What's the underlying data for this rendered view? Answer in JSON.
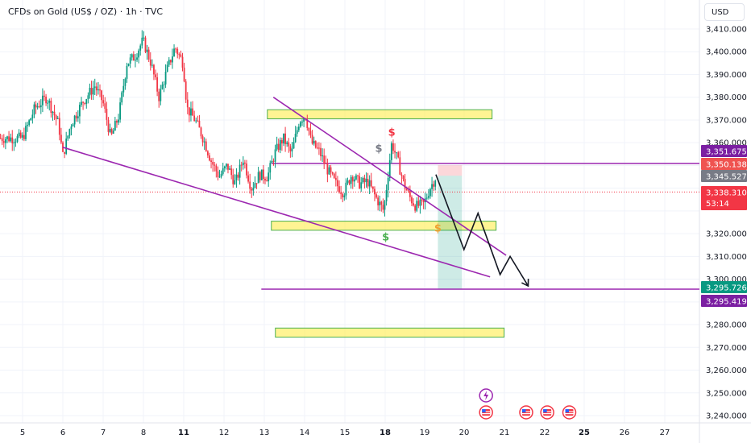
{
  "header": {
    "title": "CFDs on Gold (US$ / OZ) · 1h · TVC",
    "currency": "USD"
  },
  "chart_data": {
    "type": "candlestick",
    "title": "CFDs on Gold (US$ / OZ) · 1h · TVC",
    "ylim": [
      3236,
      3416
    ],
    "y_ticks": [
      3410,
      3400,
      3390,
      3380,
      3370,
      3360,
      3320,
      3310,
      3300,
      3280,
      3270,
      3260,
      3250,
      3240
    ],
    "y_tick_labels": [
      "3,410.000",
      "3,400.000",
      "3,390.000",
      "3,380.000",
      "3,370.000",
      "3,360.000",
      "3,320.000",
      "3,310.000",
      "3,300.000",
      "3,280.000",
      "3,270.000",
      "3,260.000",
      "3,250.000",
      "3,240.000"
    ],
    "x_ticks": [
      {
        "label": "5",
        "bold": false
      },
      {
        "label": "6",
        "bold": false
      },
      {
        "label": "7",
        "bold": false
      },
      {
        "label": "8",
        "bold": false
      },
      {
        "label": "11",
        "bold": true
      },
      {
        "label": "12",
        "bold": false
      },
      {
        "label": "13",
        "bold": false
      },
      {
        "label": "14",
        "bold": false
      },
      {
        "label": "15",
        "bold": false
      },
      {
        "label": "18",
        "bold": true
      },
      {
        "label": "19",
        "bold": false
      },
      {
        "label": "20",
        "bold": false
      },
      {
        "label": "21",
        "bold": false
      },
      {
        "label": "22",
        "bold": false
      },
      {
        "label": "25",
        "bold": true
      },
      {
        "label": "26",
        "bold": false
      },
      {
        "label": "27",
        "bold": false
      }
    ],
    "price_tags": [
      {
        "label": "3,351.675",
        "price": 3351.675,
        "color": "#7b1fa2"
      },
      {
        "label": "3,350.138",
        "price": 3350.138,
        "color": "#ef5350"
      },
      {
        "label": "3,345.527",
        "price": 3345.527,
        "color": "#787b86"
      },
      {
        "label": "3,338.310",
        "price": 3338.31,
        "color": "#f23645",
        "sub": "53:14"
      },
      {
        "label": "3,295.726",
        "price": 3295.726,
        "color": "#089981"
      },
      {
        "label": "3,295.419",
        "price": 3295.419,
        "color": "#7b1fa2"
      }
    ],
    "horizontal_lines": [
      {
        "price": 3350.9,
        "color": "#9c27b0"
      },
      {
        "price": 3295.6,
        "color": "#9c27b0"
      }
    ],
    "current_price": 3338.31,
    "zones": [
      {
        "from_day": 13.1,
        "to_day": 20.7,
        "top": 3374.5,
        "bottom": 3370.5
      },
      {
        "from_day": 13.2,
        "to_day": 20.8,
        "top": 3325.5,
        "bottom": 3321.5
      },
      {
        "from_day": 13.3,
        "to_day": 21.0,
        "top": 3278.5,
        "bottom": 3274.5
      }
    ],
    "trendlines": [
      {
        "from": [
          13.25,
          3380
        ],
        "to": [
          21.05,
          3310.5
        ]
      },
      {
        "from": [
          6.0,
          3358
        ],
        "to": [
          20.65,
          3301
        ]
      }
    ],
    "position": {
      "entry": 3345.5,
      "stop": 3350.1,
      "target": 3295.7,
      "from_day": 19.35,
      "to_day": 19.95
    },
    "projection": [
      [
        19.3,
        3346
      ],
      [
        20.0,
        3313
      ],
      [
        20.35,
        3329
      ],
      [
        20.9,
        3302
      ],
      [
        21.15,
        3310
      ],
      [
        21.6,
        3297
      ]
    ],
    "markers": [
      {
        "day": 17.5,
        "price": 3356,
        "color": "#787b86"
      },
      {
        "day": 18.2,
        "price": 3363,
        "color": "#f23645"
      },
      {
        "day": 18.05,
        "price": 3317,
        "color": "#4caf50"
      },
      {
        "day": 19.35,
        "price": 3321,
        "color": "#f0a030"
      }
    ],
    "events": [
      {
        "day": 20.55,
        "kind": "lightning"
      },
      {
        "day": 20.55,
        "kind": "flag"
      },
      {
        "day": 21.55,
        "kind": "flag"
      },
      {
        "day": 22.15,
        "kind": "flag"
      },
      {
        "day": 23.5,
        "kind": "flag"
      }
    ],
    "colors": {
      "up": "#089981",
      "down": "#f23645",
      "zone_fill": "#ffeb3b",
      "zone_border": "#4caf50",
      "trend": "#9c27b0"
    }
  }
}
